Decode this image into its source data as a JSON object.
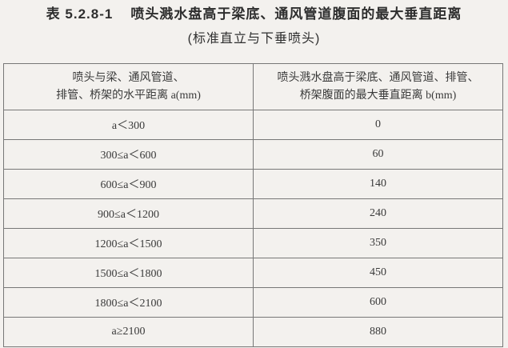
{
  "title": {
    "number": "表 5.2.8-1",
    "text": "喷头溅水盘高于梁底、通风管道腹面的最大垂直距离"
  },
  "subtitle": "(标准直立与下垂喷头)",
  "table": {
    "headers": [
      {
        "line1": "喷头与梁、通风管道、",
        "line2": "排管、桥架的水平距离 a(mm)"
      },
      {
        "line1": "喷头溅水盘高于梁底、通风管道、排管、",
        "line2": "桥架腹面的最大垂直距离 b(mm)"
      }
    ],
    "rows": [
      {
        "a": "a＜300",
        "b": "0"
      },
      {
        "a": "300≤a＜600",
        "b": "60"
      },
      {
        "a": "600≤a＜900",
        "b": "140"
      },
      {
        "a": "900≤a＜1200",
        "b": "240"
      },
      {
        "a": "1200≤a＜1500",
        "b": "350"
      },
      {
        "a": "1500≤a＜1800",
        "b": "450"
      },
      {
        "a": "1800≤a＜2100",
        "b": "600"
      },
      {
        "a": "a≥2100",
        "b": "880"
      }
    ]
  }
}
